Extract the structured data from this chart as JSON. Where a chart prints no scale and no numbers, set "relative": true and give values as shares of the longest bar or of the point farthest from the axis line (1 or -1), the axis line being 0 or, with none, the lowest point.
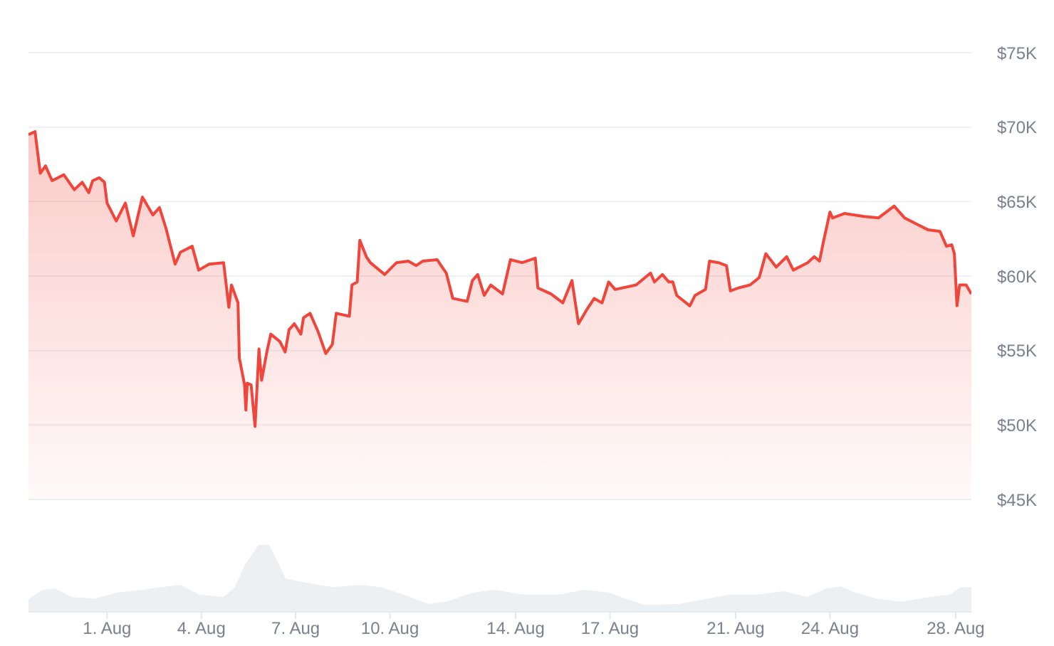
{
  "chart_data": [
    {
      "type": "area",
      "color": "#f0453b",
      "grid": "y",
      "tick_labels": "y",
      "xlim": [
        "--07-29T12:00",
        "--08-28T12:00"
      ],
      "ylim": [
        45000,
        75000
      ],
      "yticks": [
        {
          "value": 45000,
          "label": "$45K"
        },
        {
          "value": 50000,
          "label": "$50K"
        },
        {
          "value": 55000,
          "label": "$55K"
        },
        {
          "value": 60000,
          "label": "$60K"
        },
        {
          "value": 65000,
          "label": "$65K"
        },
        {
          "value": 70000,
          "label": "$70K"
        },
        {
          "value": 75000,
          "label": "$75K"
        }
      ],
      "x": [
        "--07-29T12:00",
        "--07-29T17:00",
        "--07-29T21:00",
        "--07-30T01:00",
        "--07-30T06:00",
        "--07-30T15:00",
        "--07-30T23:00",
        "--07-31T05:00",
        "--07-31T10:00",
        "--07-31T13:00",
        "--07-31T18:00",
        "--07-31T22:00",
        "--08-01T00:00",
        "--08-01T07:00",
        "--08-01T14:00",
        "--08-01T20:00",
        "--08-02T03:00",
        "--08-02T11:00",
        "--08-02T16:00",
        "--08-02T21:00",
        "--08-03T04:00",
        "--08-03T08:00",
        "--08-03T17:00",
        "--08-03T22:00",
        "--08-04T06:00",
        "--08-04T17:00",
        "--08-04T21:00",
        "--08-04T23:00",
        "--08-05T04:00",
        "--08-05T05:00",
        "--08-05T09:00",
        "--08-05T10:00",
        "--08-05T11:00",
        "--08-05T14:00",
        "--08-05T17:00",
        "--08-05T20:00",
        "--08-05T22:00",
        "--08-06T02:00",
        "--08-06T05:00",
        "--08-06T12:00",
        "--08-06T16:00",
        "--08-06T19:00",
        "--08-06T23:00",
        "--08-07T04:00",
        "--08-07T06:00",
        "--08-07T11:00",
        "--08-07T17:00",
        "--08-07T23:00",
        "--08-08T04:00",
        "--08-08T07:00",
        "--08-08T17:00",
        "--08-08T19:00",
        "--08-08T23:00",
        "--08-09T01:00",
        "--08-09T06:00",
        "--08-09T09:00",
        "--08-09T20:00",
        "--08-10T05:00",
        "--08-10T14:00",
        "--08-10T20:00",
        "--08-11T01:00",
        "--08-11T12:00",
        "--08-11T19:00",
        "--08-12T00:00",
        "--08-12T11:00",
        "--08-12T15:00",
        "--08-12T19:00",
        "--08-13T00:00",
        "--08-13T05:00",
        "--08-13T14:00",
        "--08-13T20:00",
        "--08-14T05:00",
        "--08-14T15:00",
        "--08-14T17:00",
        "--08-15T03:00",
        "--08-15T12:00",
        "--08-15T19:00",
        "--08-16T00:00",
        "--08-16T06:00",
        "--08-16T12:00",
        "--08-16T18:00",
        "--08-16T23:00",
        "--08-17T04:00",
        "--08-17T20:00",
        "--08-18T07:00",
        "--08-18T10:00",
        "--08-18T16:00",
        "--08-18T21:00",
        "--08-19T00:00",
        "--08-19T03:00",
        "--08-19T13:00",
        "--08-19T17:00",
        "--08-20T01:00",
        "--08-20T04:00",
        "--08-20T11:00",
        "--08-20T17:00",
        "--08-20T20:00",
        "--08-21T02:00",
        "--08-21T11:00",
        "--08-21T18:00",
        "--08-21T23:00",
        "--08-22T07:00",
        "--08-22T15:00",
        "--08-22T20:00",
        "--08-23T07:00",
        "--08-23T12:00",
        "--08-23T16:00",
        "--08-23T19:00",
        "--08-24T00:00",
        "--08-24T02:00",
        "--08-24T11:00",
        "--08-25T02:00",
        "--08-25T13:00",
        "--08-26T01:00",
        "--08-26T09:00",
        "--08-26T18:00",
        "--08-27T03:00",
        "--08-27T12:00",
        "--08-27T17:00",
        "--08-27T21:00",
        "--08-27T23:00",
        "--08-28T01:00",
        "--08-28T03:00",
        "--08-28T08:00",
        "--08-28T12:00"
      ],
      "values": [
        69500,
        69700,
        66900,
        67400,
        66400,
        66800,
        65800,
        66300,
        65600,
        66400,
        66600,
        66300,
        64900,
        63700,
        64900,
        62700,
        65300,
        64100,
        64600,
        63200,
        60800,
        61600,
        62000,
        60400,
        60800,
        60900,
        57900,
        59400,
        58200,
        54500,
        52700,
        51000,
        52800,
        52700,
        49900,
        55100,
        53000,
        54900,
        56100,
        55600,
        54900,
        56400,
        56800,
        56100,
        57200,
        57500,
        56300,
        54800,
        55400,
        57500,
        57300,
        59400,
        59600,
        62400,
        61300,
        60900,
        60100,
        60900,
        61000,
        60700,
        61000,
        61100,
        60200,
        58500,
        58300,
        59700,
        60100,
        58700,
        59400,
        58800,
        61100,
        60900,
        61200,
        59200,
        58800,
        58200,
        59700,
        56800,
        57700,
        58500,
        58200,
        59600,
        59100,
        59400,
        60200,
        59600,
        60100,
        59600,
        59600,
        58700,
        58000,
        58700,
        59100,
        61000,
        60900,
        60700,
        59000,
        59200,
        59400,
        59900,
        61500,
        60600,
        61300,
        60400,
        60900,
        61300,
        61000,
        62300,
        64300,
        63900,
        64200,
        64000,
        63900,
        64700,
        63900,
        63500,
        63100,
        63000,
        62000,
        62100,
        61500,
        58000,
        59400,
        59400,
        58800
      ]
    },
    {
      "type": "area",
      "color": "#edf0f3",
      "relative": true,
      "tick_labels": "x",
      "xlim": [
        "--07-29T12:00",
        "--08-28T12:00"
      ],
      "xticks": [
        {
          "value": "--08-01",
          "label": "1. Aug"
        },
        {
          "value": "--08-04",
          "label": "4. Aug"
        },
        {
          "value": "--08-07",
          "label": "7. Aug"
        },
        {
          "value": "--08-10",
          "label": "10. Aug"
        },
        {
          "value": "--08-14",
          "label": "14. Aug"
        },
        {
          "value": "--08-17",
          "label": "17. Aug"
        },
        {
          "value": "--08-21",
          "label": "21. Aug"
        },
        {
          "value": "--08-24",
          "label": "24. Aug"
        },
        {
          "value": "--08-28",
          "label": "28. Aug"
        }
      ],
      "x": [
        "--07-29T12:00",
        "--07-29T23:00",
        "--07-30T08:00",
        "--07-30T21:00",
        "--07-31T15:00",
        "--08-01T08:00",
        "--08-02T03:00",
        "--08-02T17:00",
        "--08-03T08:00",
        "--08-03T22:00",
        "--08-04T17:00",
        "--08-05T02:00",
        "--08-05T10:00",
        "--08-05T20:00",
        "--08-06T03:00",
        "--08-06T08:00",
        "--08-06T16:00",
        "--08-07T06:00",
        "--08-08T04:00",
        "--08-09T01:00",
        "--08-09T17:00",
        "--08-10T10:00",
        "--08-11T05:00",
        "--08-11T19:00",
        "--08-12T16:00",
        "--08-13T08:00",
        "--08-14T05:00",
        "--08-15T10:00",
        "--08-16T04:00",
        "--08-16T23:00",
        "--08-17T13:00",
        "--08-18T03:00",
        "--08-19T05:00",
        "--08-20T06:00",
        "--08-20T20:00",
        "--08-21T18:00",
        "--08-22T12:00",
        "--08-23T07:00",
        "--08-23T21:00",
        "--08-24T08:00",
        "--08-24T19:00",
        "--08-25T13:00",
        "--08-26T06:00",
        "--08-27T04:00",
        "--08-27T20:00",
        "--08-28T04:00",
        "--08-28T12:00"
      ],
      "values": [
        0.18,
        0.32,
        0.34,
        0.21,
        0.19,
        0.28,
        0.32,
        0.36,
        0.39,
        0.25,
        0.21,
        0.36,
        0.71,
        0.99,
        1,
        0.81,
        0.49,
        0.43,
        0.36,
        0.39,
        0.36,
        0.25,
        0.11,
        0.14,
        0.28,
        0.32,
        0.25,
        0.25,
        0.32,
        0.28,
        0.18,
        0.09,
        0.11,
        0.2,
        0.25,
        0.25,
        0.3,
        0.21,
        0.34,
        0.37,
        0.28,
        0.18,
        0.14,
        0.21,
        0.25,
        0.36,
        0.36
      ]
    }
  ]
}
